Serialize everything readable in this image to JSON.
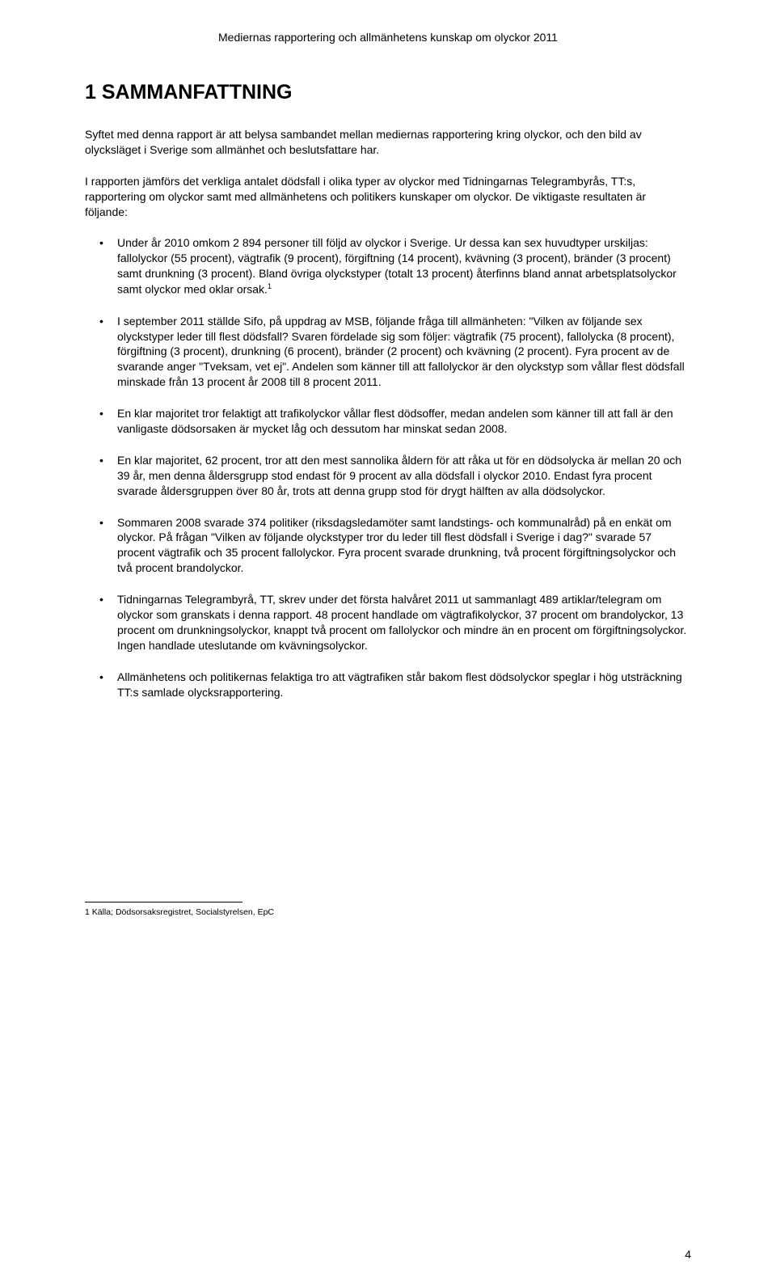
{
  "header": "Mediernas rapportering och allmänhetens kunskap om olyckor 2011",
  "title": "1 SAMMANFATTNING",
  "para1": "Syftet med denna rapport är att belysa sambandet mellan mediernas rapportering kring olyckor, och den bild av olycksläget i Sverige som allmänhet och beslutsfattare har.",
  "para2": "I rapporten jämförs det verkliga antalet dödsfall i olika typer av olyckor med Tidningarnas Telegrambyrås, TT:s, rapportering om olyckor samt med allmänhetens och politikers kunskaper om olyckor. De viktigaste resultaten är följande:",
  "bullets": [
    {
      "text_a": "Under år 2010 omkom 2 894 personer till följd av olyckor i Sverige. Ur dessa kan sex huvudtyper urskiljas: fallolyckor (55 procent), vägtrafik (9 procent), förgiftning (14 procent), kvävning (3 procent), bränder (3 procent) samt drunkning (3 procent). Bland övriga olyckstyper (totalt 13 procent) återfinns bland annat arbetsplatsolyckor samt olyckor med oklar orsak.",
      "sup": "1"
    },
    {
      "text_a": "I september 2011 ställde Sifo, på uppdrag av MSB, följande fråga till allmänheten: \"Vilken av följande sex olyckstyper leder till flest dödsfall? Svaren fördelade sig som följer: vägtrafik (75 procent), fallolycka (8 procent), förgiftning (3 procent), drunkning (6 procent), bränder (2 procent) och kvävning (2 procent). Fyra procent av de svarande anger \"Tveksam, vet ej\". Andelen som känner till att fallolyckor är den olyckstyp som vållar flest dödsfall minskade från 13 procent år 2008 till 8 procent 2011."
    },
    {
      "text_a": "En klar majoritet tror felaktigt att trafikolyckor vållar flest dödsoffer, medan andelen som känner till att fall är den vanligaste dödsorsaken är mycket låg och dessutom har minskat sedan 2008."
    },
    {
      "text_a": "En klar majoritet, 62 procent, tror att den mest sannolika åldern för att råka ut för en dödsolycka är mellan 20 och 39 år, men denna åldersgrupp stod endast för 9 procent av alla dödsfall i olyckor 2010. Endast fyra procent svarade åldersgruppen över 80 år, trots att denna grupp stod för drygt hälften av alla dödsolyckor."
    },
    {
      "text_a": "Sommaren 2008 svarade 374 politiker (riksdagsledamöter samt landstings- och kommunalråd) på en enkät om olyckor. På frågan \"Vilken av följande olyckstyper tror du leder till flest dödsfall i Sverige i dag?\" svarade 57 procent vägtrafik och 35 procent fallolyckor. Fyra procent svarade drunkning, två procent förgiftningsolyckor och två procent brandolyckor."
    },
    {
      "text_a": "Tidningarnas Telegrambyrå, TT, skrev under det första halvåret 2011 ut sammanlagt 489 artiklar/telegram om olyckor som granskats i denna rapport. 48 procent handlade om vägtrafikolyckor, 37 procent om brandolyckor, 13 procent om drunkningsolyckor, knappt två procent om fallolyckor och mindre än en procent om förgiftningsolyckor. Ingen handlade uteslutande om kvävningsolyckor."
    },
    {
      "text_a": "Allmänhetens och politikernas felaktiga tro att vägtrafiken står bakom flest dödsolyckor speglar i hög utsträckning TT:s samlade olycksrapportering."
    }
  ],
  "footnote_marker": "1",
  "footnote_text": " Källa; Dödsorsaksregistret, Socialstyrelsen, EpC",
  "page_number": "4"
}
